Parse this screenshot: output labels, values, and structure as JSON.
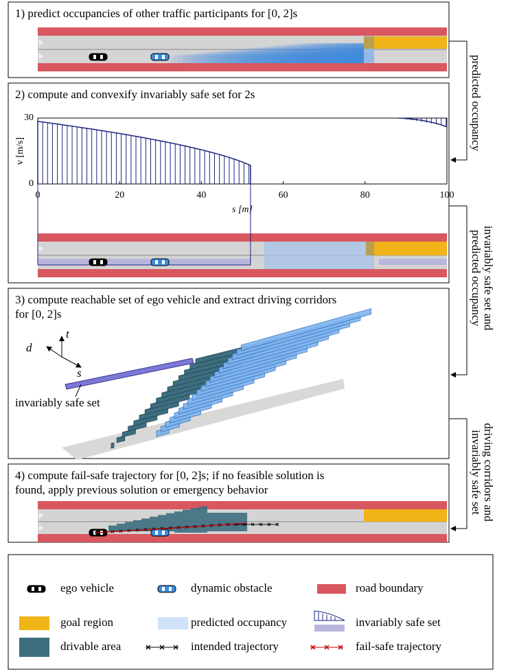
{
  "panels": [
    {
      "title_lines": [
        "1) predict occupancies of other traffic participants for [0, 2]s"
      ]
    },
    {
      "title_lines": [
        "2) compute and convexify invariably safe set for 2s"
      ]
    },
    {
      "title_lines": [
        "3) compute reachable set of ego vehicle and extract driving corridors",
        "for [0, 2]s"
      ]
    },
    {
      "title_lines": [
        "4) compute fail-safe trajectory for [0, 2]s; if no feasible solution is",
        "found, apply previous solution or emergency behavior"
      ]
    }
  ],
  "plot": {
    "xlabel": "s [m]",
    "ylabel": "v [m/s]",
    "xlim": [
      0,
      100
    ],
    "ylim": [
      0,
      30
    ],
    "xticks": [
      0,
      20,
      40,
      60,
      80,
      100
    ],
    "yticks": [
      0,
      30
    ]
  },
  "reachable_set": {
    "axis_labels": [
      "t",
      "d",
      "s"
    ],
    "annotation": "invariably safe set"
  },
  "side_labels": [
    [
      "predicted occupancy"
    ],
    [
      "invariably safe set and",
      "predicted occupancy"
    ],
    [
      "driving corridors and",
      "invariably safe set"
    ]
  ],
  "legend": [
    "ego vehicle",
    "dynamic obstacle",
    "road boundary",
    "goal region",
    "predicted occupancy",
    "invariably safe set",
    "drivable area",
    "intended trajectory",
    "fail-safe trajectory"
  ]
}
